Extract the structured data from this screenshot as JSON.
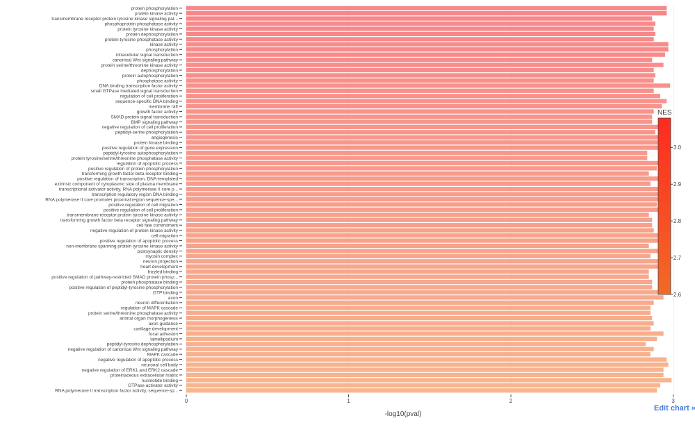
{
  "chart_data": {
    "type": "bar",
    "orientation": "horizontal",
    "xlabel": "-log10(pval)",
    "ylabel": "",
    "xlim": [
      0,
      3.07
    ],
    "x_ticks": [
      "0",
      "1",
      "2",
      "3"
    ],
    "categories": [
      "protein phosphorylation",
      "protein kinase activity",
      "transmembrane receptor protein tyrosine kinase signaling pat...",
      "phosphoprotein phosphatase activity",
      "protein tyrosine kinase activity",
      "protein dephosphorylation",
      "protein tyrosine phosphatase activity",
      "kinase activity",
      "phosphorylation",
      "intracellular signal transduction",
      "canonical Wnt signaling pathway",
      "protein serine/threonine kinase activity",
      "dephosphorylation",
      "protein autophosphorylation",
      "phosphatase activity",
      "DNA binding transcription factor activity",
      "small GTPase mediated signal transduction",
      "regulation of cell proliferation",
      "sequence-specific DNA binding",
      "membrane raft",
      "growth factor activity",
      "SMAD protein signal transduction",
      "BMP signaling pathway",
      "negative regulation of cell proliferation",
      "peptidyl-serine phosphorylation",
      "angiogenesis",
      "protein kinase binding",
      "positive regulation of gene expression",
      "peptidyl-tyrosine autophosphorylation",
      "protein tyrosine/serine/threonine phosphatase activity",
      "regulation of apoptotic process",
      "positive regulation of protein phosphorylation",
      "transforming growth factor beta receptor binding",
      "positive regulation of transcription, DNA-templated",
      "extrinsic component of cytoplasmic side of plasma membrane",
      "transcriptional activator activity, RNA polymerase II core p...",
      "transcription regulatory region DNA binding",
      "RNA polymerase II core promoter proximal region sequence-spe...",
      "positive regulation of cell migration",
      "positive regulation of cell proliferation",
      "transmembrane receptor protein tyrosine kinase activity",
      "transforming growth factor beta receptor signaling pathway",
      "cell fate commitment",
      "negative regulation of protein kinase activity",
      "cell migration",
      "positive regulation of apoptotic process",
      "non-membrane spanning protein tyrosine kinase activity",
      "postsynaptic density",
      "myosin complex",
      "neuron projection",
      "heart development",
      "frizzled binding",
      "positive regulation of pathway-restricted SMAD protein phosp...",
      "protein phosphatase binding",
      "positive regulation of peptidyl-tyrosine phosphorylation",
      "GTP binding",
      "axon",
      "neuron differentiation",
      "regulation of MAPK cascade",
      "protein serine/threonine phosphatase activity",
      "animal organ morphogenesis",
      "axon guidance",
      "cartilage development",
      "focal adhesion",
      "lamellipodium",
      "peptidyl-tyrosine dephosphorylation",
      "negative regulation of canonical Wnt signaling pathway",
      "MAPK cascade",
      "negative regulation of apoptotic process",
      "neuronal cell body",
      "negative regulation of ERK1 and ERK2 cascade",
      "proteinaceous extracellular matrix",
      "nucleotide binding",
      "GTPase activator activity",
      "RNA polymerase II transcription factor activity, sequence-sp..."
    ],
    "values": [
      2.96,
      2.96,
      2.87,
      2.89,
      2.88,
      2.89,
      2.88,
      2.97,
      2.97,
      2.95,
      2.87,
      2.94,
      2.88,
      2.89,
      2.88,
      2.98,
      2.88,
      2.92,
      2.96,
      2.93,
      2.88,
      2.87,
      2.87,
      2.94,
      2.89,
      2.91,
      2.95,
      2.94,
      2.84,
      2.84,
      2.92,
      2.9,
      2.85,
      2.96,
      2.86,
      2.93,
      2.91,
      2.94,
      2.9,
      2.95,
      2.85,
      2.87,
      2.87,
      2.88,
      2.91,
      2.94,
      2.85,
      2.91,
      2.86,
      2.94,
      2.91,
      2.85,
      2.85,
      2.87,
      2.87,
      2.94,
      2.94,
      2.88,
      2.86,
      2.86,
      2.87,
      2.88,
      2.86,
      2.94,
      2.9,
      2.83,
      2.88,
      2.86,
      2.96,
      2.97,
      2.94,
      2.94,
      2.99,
      2.92,
      2.9
    ],
    "colorbar": {
      "title": "NES",
      "range": [
        2.6,
        3.08
      ],
      "ticks": [
        "2.6",
        "2.7",
        "2.8",
        "2.9",
        "3.0"
      ],
      "color_low": "#f26a26",
      "color_high": "#fe2b1f"
    },
    "bar_color_top": "#f8868a",
    "bar_color_bottom": "#f7b68e"
  },
  "edit_link_label": "Edit chart »"
}
